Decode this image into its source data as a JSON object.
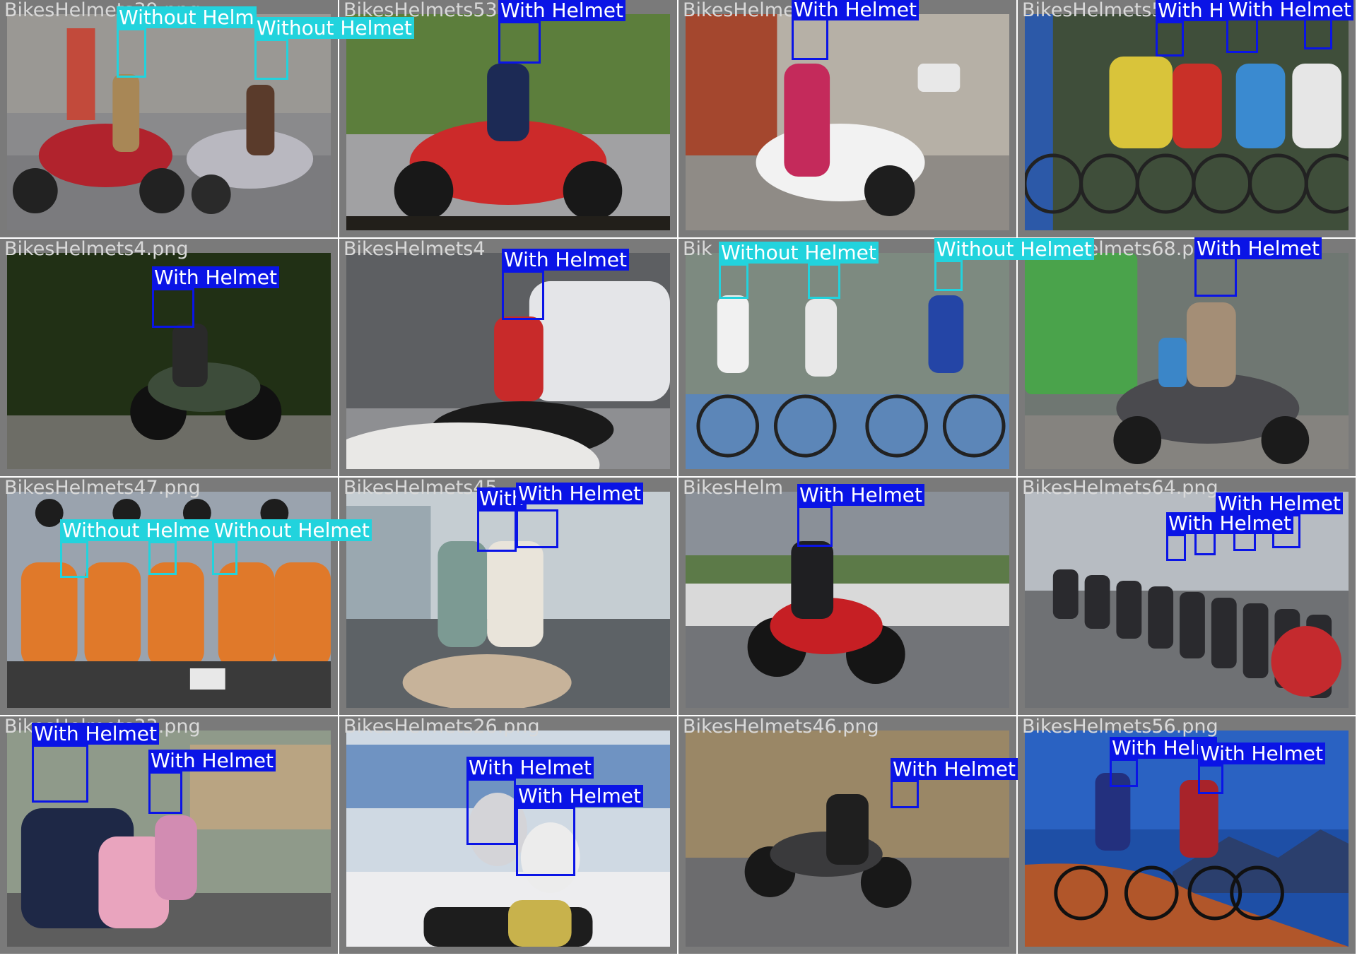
{
  "colors": {
    "with_helmet": "#0a14e6",
    "without_helmet": "#22d3dd",
    "tile_bg": "#7a7a7a",
    "filename_text": "#d9d9d9"
  },
  "labels": {
    "with": "With Helmet",
    "without": "Without Helmet"
  },
  "tiles": [
    {
      "filename": "BikesHelmets39.png",
      "scene": "street-scooters",
      "detections": [
        {
          "cls": "without",
          "text": "Without Helm"
        },
        {
          "cls": "without",
          "text": "Without Helmet"
        }
      ]
    },
    {
      "filename": "BikesHelmets53.png",
      "scene": "red-scooter",
      "detections": [
        {
          "cls": "with",
          "text": "With Helmet"
        }
      ]
    },
    {
      "filename": "BikesHelmets5.png",
      "scene": "white-scooter",
      "detections": [
        {
          "cls": "with",
          "text": "With Helmet"
        }
      ]
    },
    {
      "filename": "BikesHelmets50.png",
      "scene": "cycling-race",
      "detections": [
        {
          "cls": "with",
          "text": "With H"
        },
        {
          "cls": "with",
          "text": "With Helmet"
        },
        {
          "cls": "with",
          "text": ""
        }
      ]
    },
    {
      "filename": "BikesHelmets4.png",
      "scene": "motorcycle-dark",
      "detections": [
        {
          "cls": "with",
          "text": "With Helmet"
        }
      ]
    },
    {
      "filename": "BikesHelmets4",
      "scene": "masked-rider",
      "detections": [
        {
          "cls": "with",
          "text": "With Helmet"
        }
      ]
    },
    {
      "filename": "Bik",
      "scene": "three-cyclists",
      "detections": [
        {
          "cls": "without",
          "text": "Without Helmet"
        },
        {
          "cls": "without",
          "text": ""
        },
        {
          "cls": "without",
          "text": "Without Helmet"
        }
      ]
    },
    {
      "filename": "BikesHelmets68.png",
      "scene": "scooter-family",
      "detections": [
        {
          "cls": "with",
          "text": "With Helmet"
        }
      ]
    },
    {
      "filename": "BikesHelmets47.png",
      "scene": "orange-crowd",
      "detections": [
        {
          "cls": "without",
          "text": "Without Helme"
        },
        {
          "cls": "without",
          "text": ""
        },
        {
          "cls": "without",
          "text": "Without Helmet"
        }
      ]
    },
    {
      "filename": "BikesHelmets45",
      "scene": "couple-scooter",
      "detections": [
        {
          "cls": "with",
          "text": "With"
        },
        {
          "cls": "with",
          "text": "With Helmet"
        }
      ]
    },
    {
      "filename": "BikesHelm",
      "scene": "red-motorbike",
      "detections": [
        {
          "cls": "with",
          "text": "With Helmet"
        }
      ]
    },
    {
      "filename": "BikesHelmets64.png",
      "scene": "motorcade",
      "detections": [
        {
          "cls": "with",
          "text": "With Helmet"
        },
        {
          "cls": "with",
          "text": ""
        },
        {
          "cls": "with",
          "text": ""
        },
        {
          "cls": "with",
          "text": "With Helmet"
        }
      ]
    },
    {
      "filename": "BikesHelmets33.png",
      "scene": "family-moto",
      "detections": [
        {
          "cls": "with",
          "text": "With Helmet"
        },
        {
          "cls": "with",
          "text": "With Helmet"
        }
      ]
    },
    {
      "filename": "BikesHelmets26.png",
      "scene": "two-helmets",
      "detections": [
        {
          "cls": "with",
          "text": "With Helmet"
        },
        {
          "cls": "with",
          "text": "With Helmet"
        }
      ]
    },
    {
      "filename": "BikesHelmets46.png",
      "scene": "cruiser-road",
      "detections": [
        {
          "cls": "with",
          "text": "With Helmet"
        }
      ]
    },
    {
      "filename": "BikesHelmets56.png",
      "scene": "mountain-bikers",
      "detections": [
        {
          "cls": "with",
          "text": "With Helm"
        },
        {
          "cls": "with",
          "text": "With Helmet"
        }
      ]
    }
  ]
}
